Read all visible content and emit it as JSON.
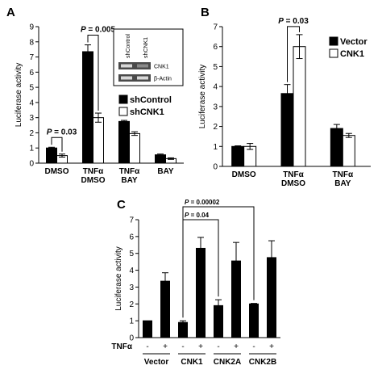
{
  "chart_data": [
    {
      "panel": "A",
      "type": "bar",
      "ylabel": "Luciferase activity",
      "ylim": [
        0,
        9
      ],
      "yticks": [
        "0",
        "1",
        "2",
        "3",
        "4",
        "5",
        "6",
        "7",
        "8",
        "9"
      ],
      "categories": [
        [
          "DMSO"
        ],
        [
          "TNFα",
          "DMSO"
        ],
        [
          "TNFα",
          "BAY"
        ],
        [
          "BAY"
        ]
      ],
      "series": [
        {
          "name": "shControl",
          "color": "#000000",
          "values": [
            1.0,
            7.35,
            2.75,
            0.55
          ],
          "errors": [
            0.05,
            0.45,
            0.07,
            0.05
          ]
        },
        {
          "name": "shCNK1",
          "color": "#ffffff",
          "values": [
            0.5,
            3.0,
            1.95,
            0.3
          ],
          "errors": [
            0.1,
            0.3,
            0.12,
            0.05
          ]
        }
      ],
      "annotations": [
        {
          "label": "P = 0.03",
          "from": 0,
          "to": 0
        },
        {
          "label": "P = 0.005",
          "from": 1,
          "to": 1
        }
      ],
      "inset": {
        "lanes": [
          "shControl",
          "shCNK1"
        ],
        "rows": [
          "CNK1",
          "β-Actin"
        ]
      },
      "legend": "right"
    },
    {
      "panel": "B",
      "type": "bar",
      "ylabel": "Luciferase activity",
      "ylim": [
        0,
        7
      ],
      "yticks": [
        "0",
        "1",
        "2",
        "3",
        "4",
        "5",
        "6",
        "7"
      ],
      "categories": [
        [
          "DMSO"
        ],
        [
          "TNFα",
          "DMSO"
        ],
        [
          "TNFα",
          "BAY"
        ]
      ],
      "series": [
        {
          "name": "Vector",
          "color": "#000000",
          "values": [
            1.0,
            3.65,
            1.9
          ],
          "errors": [
            0.03,
            0.45,
            0.2
          ]
        },
        {
          "name": "CNK1",
          "color": "#ffffff",
          "values": [
            1.0,
            6.0,
            1.55
          ],
          "errors": [
            0.15,
            0.6,
            0.1
          ]
        }
      ],
      "annotations": [
        {
          "label": "P = 0.03",
          "from": 1,
          "to": 1
        }
      ],
      "legend": "top-right"
    },
    {
      "panel": "C",
      "type": "bar",
      "ylabel": "Luciferase activity",
      "ylim": [
        0,
        7
      ],
      "yticks": [
        "0",
        "1",
        "2",
        "3",
        "4",
        "5",
        "6",
        "7"
      ],
      "x_row_label": "TNFα",
      "bar_signs": [
        "-",
        "+",
        "-",
        "+",
        "-",
        "+",
        "-",
        "+"
      ],
      "groups": [
        "Vector",
        "CNK1",
        "CNK2A",
        "CNK2B"
      ],
      "values": [
        1.0,
        3.35,
        0.9,
        5.3,
        1.9,
        4.55,
        2.0,
        4.75
      ],
      "errors": [
        0.0,
        0.5,
        0.1,
        0.65,
        0.35,
        1.1,
        0.03,
        1.0
      ],
      "annotations": [
        {
          "label": "P = 0.04",
          "from": 2,
          "to": 4
        },
        {
          "label": "P = 0.00002",
          "from": 2,
          "to": 6
        }
      ]
    }
  ]
}
